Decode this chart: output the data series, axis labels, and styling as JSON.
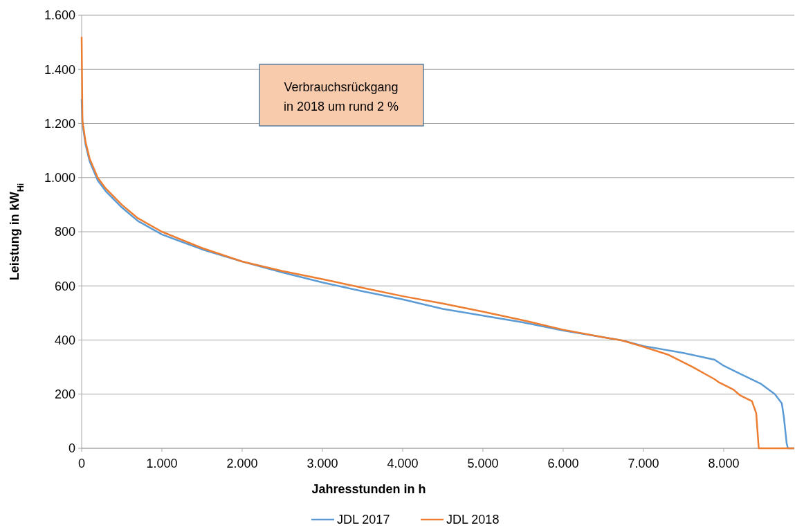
{
  "chart_data": {
    "type": "line",
    "xlabel": "Jahresstunden in h",
    "ylabel": "Leistung in kW$_{Hi}$",
    "annotations": [
      "Verbrauchsrückgang in 2018 um rund 2 %"
    ],
    "xlim": [
      0,
      8880
    ],
    "ylim": [
      0,
      1600
    ],
    "xticks": [
      0,
      {
        "value": 1000,
        "label": "1.000"
      },
      {
        "value": 2000,
        "label": "2.000"
      },
      {
        "value": 3000,
        "label": "3.000"
      },
      {
        "value": 4000,
        "label": "4.000"
      },
      {
        "value": 5000,
        "label": "5.000"
      },
      {
        "value": 6000,
        "label": "6.000"
      },
      {
        "value": 7000,
        "label": "7.000"
      },
      {
        "value": 8000,
        "label": "8.000"
      }
    ],
    "yticks": [
      0,
      200,
      400,
      600,
      800,
      {
        "value": 1000,
        "label": "1.000"
      },
      {
        "value": 1200,
        "label": "1.200"
      },
      {
        "value": 1400,
        "label": "1.400"
      },
      {
        "value": 1600,
        "label": "1.600"
      }
    ],
    "grid": "y",
    "legend": "bottom",
    "line_style": "solid",
    "series": [
      {
        "name": "JDL 2017",
        "color": "#5b9bd5",
        "x": [
          0,
          10,
          50,
          100,
          200,
          300,
          500,
          700,
          1000,
          1500,
          2000,
          2500,
          3000,
          3500,
          4000,
          4500,
          5000,
          5500,
          6000,
          6500,
          6741,
          7000,
          7500,
          7888,
          8000,
          8233,
          8466,
          8638,
          8724,
          8750,
          8784,
          8800,
          8880
        ],
        "values": [
          1290,
          1200,
          1120,
          1060,
          990,
          950,
          890,
          840,
          790,
          735,
          690,
          650,
          613,
          580,
          550,
          515,
          490,
          465,
          435,
          410,
          398,
          378,
          352,
          327,
          305,
          271,
          238,
          200,
          166,
          115,
          20,
          0,
          0
        ]
      },
      {
        "name": "JDL 2018",
        "color": "#ed7d31",
        "x": [
          0,
          10,
          50,
          100,
          200,
          300,
          500,
          700,
          1000,
          1500,
          2000,
          2500,
          3000,
          3500,
          4000,
          4500,
          5000,
          5500,
          6000,
          6500,
          6741,
          7000,
          7316,
          7603,
          7888,
          7945,
          8121,
          8207,
          8352,
          8405,
          8437,
          8880
        ],
        "values": [
          1520,
          1210,
          1130,
          1070,
          1000,
          960,
          900,
          850,
          800,
          740,
          690,
          655,
          625,
          593,
          562,
          535,
          505,
          473,
          438,
          410,
          398,
          375,
          345,
          302,
          255,
          243,
          217,
          195,
          174,
          130,
          0,
          0
        ]
      }
    ]
  }
}
